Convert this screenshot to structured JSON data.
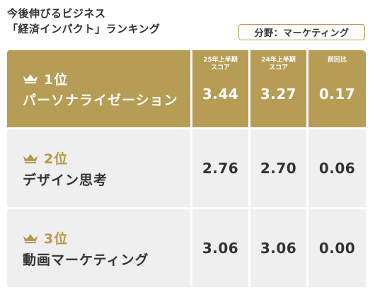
{
  "header": {
    "title_line1": "今後伸びるビジネス",
    "title_line2": "「経済インパクト」ランキング",
    "category": "分野：マーケティング"
  },
  "columns": {
    "score25_line1": "25年上半期",
    "score25_line2": "スコア",
    "score24_line1": "24年上半期",
    "score24_line2": "スコア",
    "change": "前回比"
  },
  "rows": [
    {
      "rank": "1位",
      "name": "パーソナライゼーション",
      "score25": "3.44",
      "score24": "3.27",
      "change": "0.17"
    },
    {
      "rank": "2位",
      "name": "デザイン思考",
      "score25": "2.76",
      "score24": "2.70",
      "change": "0.06"
    },
    {
      "rank": "3位",
      "name": "動画マーケティング",
      "score25": "3.06",
      "score24": "3.06",
      "change": "0.00"
    }
  ],
  "colors": {
    "gold": "#b69c55",
    "gold_text": "#b8964a",
    "row_bg": "#efefef",
    "text": "#333333"
  },
  "icons": {
    "rank": "crown-icon"
  }
}
